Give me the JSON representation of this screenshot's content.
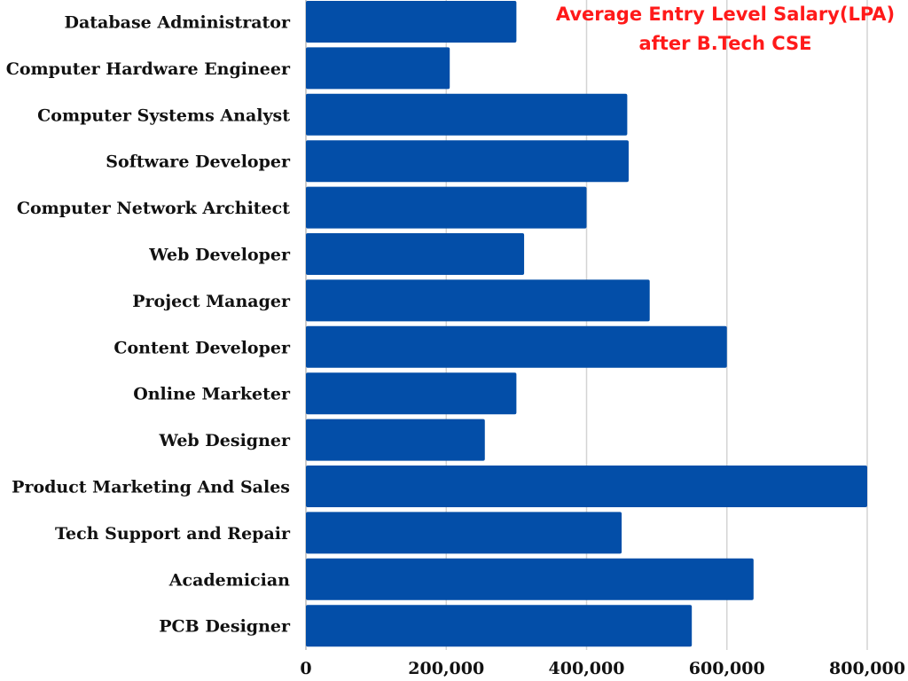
{
  "chart_data": {
    "type": "bar",
    "orientation": "horizontal",
    "title": [
      "Average Entry Level Salary(LPA)",
      "after B.Tech CSE"
    ],
    "title_color": "#ff1a1a",
    "bar_color": "#034ea8",
    "categories": [
      "Database Administrator",
      "Computer Hardware Engineer",
      "Computer Systems Analyst",
      "Software Developer",
      "Computer Network Architect",
      "Web Developer",
      "Project Manager",
      "Content Developer",
      "Online Marketer",
      "Web Designer",
      "Product Marketing And Sales",
      "Tech Support and Repair",
      "Academician",
      "PCB Designer"
    ],
    "values": [
      300000,
      205000,
      458000,
      460000,
      400000,
      311000,
      490000,
      600000,
      300000,
      255000,
      800000,
      450000,
      638000,
      550000
    ],
    "xlim": [
      0,
      800000
    ],
    "xticks": [
      0,
      200000,
      400000,
      600000,
      800000
    ],
    "xtick_labels": [
      "0",
      "200,000",
      "400,000",
      "600,000",
      "800,000"
    ],
    "grid": "vertical",
    "legend": "none"
  }
}
